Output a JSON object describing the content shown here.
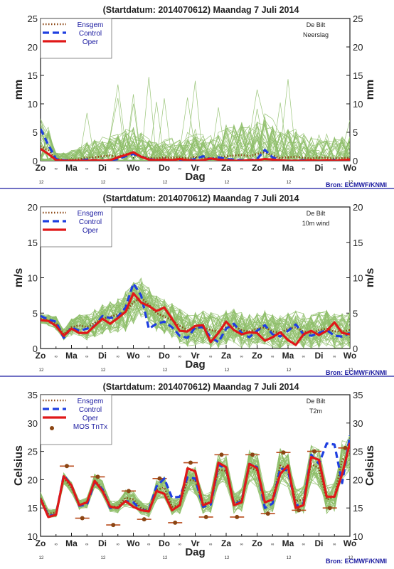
{
  "colors": {
    "members": "#8fbf6a",
    "ensgem": "#8b4513",
    "control": "#1f3fe0",
    "oper": "#e01818",
    "mos": "#8b4513",
    "mos_bar": "#b84a1a",
    "axis": "#1a1a1a",
    "separator": "#1a1aa0",
    "source_text": "#1a1aa0"
  },
  "x_axis": {
    "days": [
      "Zo",
      "Ma",
      "Di",
      "Wo",
      "Do",
      "Vr",
      "Za",
      "Zo",
      "Ma",
      "Di",
      "Wo"
    ],
    "hour_label": "12",
    "noon_symbol": "∞",
    "xlabel": "Dag"
  },
  "source": "Bron: ECMWF/KNMI",
  "chart_data": [
    {
      "type": "line",
      "title": "(Startdatum: 2014070612)    Maandag     7 Juli      2014",
      "station": "De Bilt",
      "variable": "Neerslag",
      "ylabel": "mm",
      "ylim": [
        0,
        25
      ],
      "yticks": [
        0,
        5,
        10,
        15,
        20,
        25
      ],
      "legend": [
        "Ensgem",
        "Control",
        "Oper"
      ],
      "legend_position": "top-left",
      "x": [
        0,
        0.25,
        0.5,
        0.75,
        1,
        1.25,
        1.5,
        1.75,
        2,
        2.25,
        2.5,
        2.75,
        3,
        3.25,
        3.5,
        3.75,
        4,
        4.25,
        4.5,
        4.75,
        5,
        5.25,
        5.5,
        5.75,
        6,
        6.25,
        6.5,
        6.75,
        7,
        7.25,
        7.5,
        7.75,
        8,
        8.25,
        8.5,
        8.75,
        9,
        9.25,
        9.5,
        9.75,
        10
      ],
      "series": [
        {
          "name": "Ensgem",
          "values": [
            2.6,
            1.8,
            0.3,
            0.1,
            0.2,
            0.3,
            0.5,
            0.6,
            0.8,
            0.9,
            0.7,
            1.2,
            1.0,
            0.8,
            0.5,
            0.4,
            0.6,
            0.5,
            0.6,
            0.4,
            0.7,
            0.5,
            0.3,
            0.5,
            0.8,
            0.9,
            1.0,
            0.8,
            1.2,
            1.5,
            0.9,
            0.5,
            0.6,
            0.7,
            0.5,
            0.4,
            0.6,
            0.5,
            0.4,
            0.5,
            0.5
          ]
        },
        {
          "name": "Control",
          "values": [
            5.6,
            2.8,
            0.3,
            0.1,
            0.0,
            0.0,
            0.2,
            0.1,
            0.0,
            0.1,
            0.3,
            0.8,
            1.2,
            0.7,
            0.3,
            0.1,
            0.2,
            0.0,
            0.1,
            0.0,
            0.3,
            0.8,
            0.3,
            0.6,
            0.3,
            0.2,
            0.1,
            0.1,
            0.3,
            1.9,
            0.6,
            0.1,
            0.0,
            0.0,
            0.1,
            0.0,
            0.0,
            0.0,
            0.1,
            0.0,
            0.0
          ]
        },
        {
          "name": "Oper",
          "values": [
            2.1,
            1.2,
            0.1,
            0.0,
            0.0,
            0.0,
            0.0,
            0.1,
            0.0,
            0.1,
            0.6,
            1.0,
            1.5,
            0.7,
            0.2,
            0.1,
            0.2,
            0.1,
            0.3,
            0.1,
            0.0,
            0.1,
            0.4,
            0.2,
            0.1,
            0.0,
            0.0,
            0.1,
            0.1,
            0.3,
            0.2,
            0.1,
            0.0,
            0.0,
            0.0,
            0.1,
            0.0,
            0.1,
            0.0,
            0.1,
            0.2
          ]
        }
      ],
      "members": {
        "count": 50,
        "spread": [
          3.5,
          3.0,
          0.8,
          1.0,
          1.2,
          1.5,
          2.0,
          2.2,
          2.5,
          2.5,
          2.8,
          3.2,
          3.5,
          3.0,
          2.5,
          2.0,
          2.2,
          2.5,
          2.8,
          2.6,
          3.0,
          3.2,
          3.0,
          3.5,
          3.8,
          4.0,
          4.2,
          4.0,
          4.5,
          4.5,
          4.0,
          3.5,
          3.5,
          3.8,
          3.5,
          3.2,
          3.2,
          3.0,
          2.8,
          2.8,
          2.8
        ],
        "peak": 14.8
      }
    },
    {
      "type": "line",
      "title": "(Startdatum: 2014070612)    Maandag     7 Juli      2014",
      "station": "De Bilt",
      "variable": "10m wind",
      "ylabel": "m/s",
      "ylim": [
        0,
        20
      ],
      "yticks": [
        0,
        5,
        10,
        15,
        20
      ],
      "legend": [
        "Ensgem",
        "Control",
        "Oper"
      ],
      "legend_position": "top-left",
      "x": [
        0,
        0.25,
        0.5,
        0.75,
        1,
        1.25,
        1.5,
        1.75,
        2,
        2.25,
        2.5,
        2.75,
        3,
        3.25,
        3.5,
        3.75,
        4,
        4.25,
        4.5,
        4.75,
        5,
        5.25,
        5.5,
        5.75,
        6,
        6.25,
        6.5,
        6.75,
        7,
        7.25,
        7.5,
        7.75,
        8,
        8.25,
        8.5,
        8.75,
        9,
        9.25,
        9.5,
        9.75,
        10
      ],
      "series": [
        {
          "name": "Ensgem",
          "values": [
            4.2,
            4.0,
            3.6,
            2.0,
            3.0,
            3.3,
            3.0,
            3.6,
            4.2,
            4.5,
            4.8,
            5.2,
            6.5,
            7.2,
            6.2,
            5.0,
            4.5,
            4.0,
            3.2,
            2.6,
            2.8,
            3.0,
            2.6,
            2.4,
            3.0,
            3.2,
            2.6,
            2.4,
            2.8,
            3.0,
            2.4,
            2.2,
            2.8,
            3.0,
            2.4,
            2.2,
            2.6,
            2.8,
            2.4,
            2.4,
            2.6
          ]
        },
        {
          "name": "Control",
          "values": [
            4.6,
            4.1,
            3.8,
            1.5,
            3.0,
            2.5,
            2.8,
            3.2,
            4.6,
            4.3,
            4.5,
            5.8,
            9.2,
            7.5,
            2.8,
            3.5,
            3.8,
            3.0,
            1.8,
            1.5,
            3.0,
            3.0,
            1.6,
            0.9,
            2.8,
            3.5,
            2.2,
            1.6,
            2.5,
            3.3,
            2.0,
            1.7,
            2.5,
            3.4,
            2.0,
            1.8,
            2.2,
            2.6,
            1.8,
            1.7,
            2.2
          ]
        },
        {
          "name": "Oper",
          "values": [
            4.0,
            3.9,
            3.2,
            1.8,
            2.8,
            2.2,
            2.2,
            3.2,
            4.2,
            3.5,
            4.3,
            5.2,
            7.8,
            6.5,
            6.0,
            5.3,
            5.8,
            4.2,
            2.5,
            2.4,
            3.2,
            3.3,
            0.9,
            2.2,
            3.8,
            2.6,
            2.0,
            2.3,
            2.2,
            1.1,
            1.6,
            2.3,
            1.2,
            0.5,
            2.0,
            2.5,
            1.9,
            2.5,
            3.7,
            2.2,
            2.0
          ]
        }
      ],
      "members": {
        "count": 50,
        "spread": [
          0.7,
          0.8,
          1.0,
          0.8,
          1.2,
          1.5,
          1.8,
          2.0,
          2.2,
          2.4,
          2.6,
          3.0,
          3.0,
          2.8,
          2.6,
          2.6,
          2.5,
          2.5,
          2.5,
          2.4,
          2.3,
          2.4,
          2.5,
          2.4,
          2.4,
          2.4,
          2.5,
          2.5,
          2.4,
          2.4,
          2.5,
          2.5,
          2.5,
          2.6,
          2.6,
          2.6,
          2.6,
          2.6,
          2.6,
          2.6,
          2.6
        ]
      }
    },
    {
      "type": "line",
      "title": "(Startdatum: 2014070612)    Maandag     7 Juli      2014",
      "station": "De Bilt",
      "variable": "T2m",
      "ylabel": "Celsius",
      "ylim": [
        10,
        35
      ],
      "yticks": [
        10,
        15,
        20,
        25,
        30,
        35
      ],
      "legend": [
        "Ensgem",
        "Control",
        "Oper",
        "MOS TnTx"
      ],
      "legend_position": "top-left",
      "x": [
        0,
        0.25,
        0.5,
        0.75,
        1,
        1.25,
        1.5,
        1.75,
        2,
        2.25,
        2.5,
        2.75,
        3,
        3.25,
        3.5,
        3.75,
        4,
        4.25,
        4.5,
        4.75,
        5,
        5.25,
        5.5,
        5.75,
        6,
        6.25,
        6.5,
        6.75,
        7,
        7.25,
        7.5,
        7.75,
        8,
        8.25,
        8.5,
        8.75,
        9,
        9.25,
        9.5,
        9.75,
        10
      ],
      "series": [
        {
          "name": "Ensgem",
          "values": [
            16.8,
            14.0,
            14.2,
            20.2,
            18.6,
            15.6,
            15.9,
            19.8,
            18.5,
            15.3,
            15.2,
            16.8,
            16.5,
            15.0,
            14.6,
            18.2,
            18.6,
            15.2,
            15.5,
            20.0,
            19.8,
            15.8,
            16.0,
            21.8,
            21.5,
            16.0,
            16.5,
            22.2,
            21.6,
            16.0,
            16.5,
            22.5,
            21.8,
            16.2,
            16.5,
            22.8,
            22.0,
            16.5,
            17.0,
            23.5,
            24.5
          ]
        },
        {
          "name": "Control",
          "values": [
            16.6,
            13.6,
            13.8,
            20.8,
            19.0,
            15.4,
            15.6,
            19.6,
            18.3,
            15.0,
            15.0,
            16.2,
            16.0,
            14.6,
            14.6,
            18.8,
            20.2,
            16.8,
            17.0,
            20.4,
            20.2,
            15.2,
            15.6,
            22.6,
            22.0,
            15.6,
            16.2,
            22.8,
            22.2,
            15.0,
            15.8,
            22.0,
            21.6,
            15.4,
            15.8,
            24.4,
            22.8,
            26.4,
            26.2,
            19.4,
            27.8
          ]
        },
        {
          "name": "Oper",
          "values": [
            16.6,
            13.4,
            13.8,
            20.6,
            19.0,
            15.5,
            16.0,
            19.8,
            18.0,
            15.2,
            15.0,
            16.2,
            15.2,
            14.6,
            14.4,
            18.0,
            17.5,
            14.6,
            15.5,
            22.0,
            21.5,
            15.5,
            16.0,
            23.0,
            22.2,
            15.5,
            16.0,
            22.8,
            22.0,
            16.0,
            16.5,
            21.0,
            22.5,
            15.0,
            15.5,
            24.0,
            23.5,
            17.0,
            17.0,
            21.0,
            26.5
          ]
        }
      ],
      "members": {
        "count": 50,
        "spread": [
          1.0,
          0.8,
          0.8,
          1.0,
          1.0,
          0.9,
          1.0,
          1.3,
          1.3,
          1.0,
          1.1,
          1.6,
          1.6,
          1.2,
          1.3,
          2.0,
          2.0,
          1.5,
          1.6,
          2.4,
          2.4,
          1.8,
          1.9,
          2.8,
          2.8,
          2.0,
          2.1,
          3.0,
          3.0,
          2.2,
          2.3,
          3.2,
          3.2,
          2.3,
          2.4,
          3.4,
          3.4,
          2.5,
          2.6,
          3.5,
          3.5
        ]
      },
      "mos": [
        {
          "x": 0.85,
          "value": 22.4
        },
        {
          "x": 1.35,
          "value": 13.2
        },
        {
          "x": 1.85,
          "value": 20.5
        },
        {
          "x": 2.35,
          "value": 12.0
        },
        {
          "x": 2.85,
          "value": 18.0
        },
        {
          "x": 3.35,
          "value": 13.0
        },
        {
          "x": 3.85,
          "value": 20.2
        },
        {
          "x": 4.35,
          "value": 12.4
        },
        {
          "x": 4.85,
          "value": 23.0
        },
        {
          "x": 5.35,
          "value": 13.4
        },
        {
          "x": 5.85,
          "value": 24.4
        },
        {
          "x": 6.35,
          "value": 13.4
        },
        {
          "x": 6.85,
          "value": 24.4
        },
        {
          "x": 7.35,
          "value": 14.0
        },
        {
          "x": 7.85,
          "value": 24.8
        },
        {
          "x": 8.35,
          "value": 14.6
        },
        {
          "x": 8.85,
          "value": 25.0
        },
        {
          "x": 9.35,
          "value": 15.0
        },
        {
          "x": 9.85,
          "value": 25.6
        }
      ]
    }
  ]
}
